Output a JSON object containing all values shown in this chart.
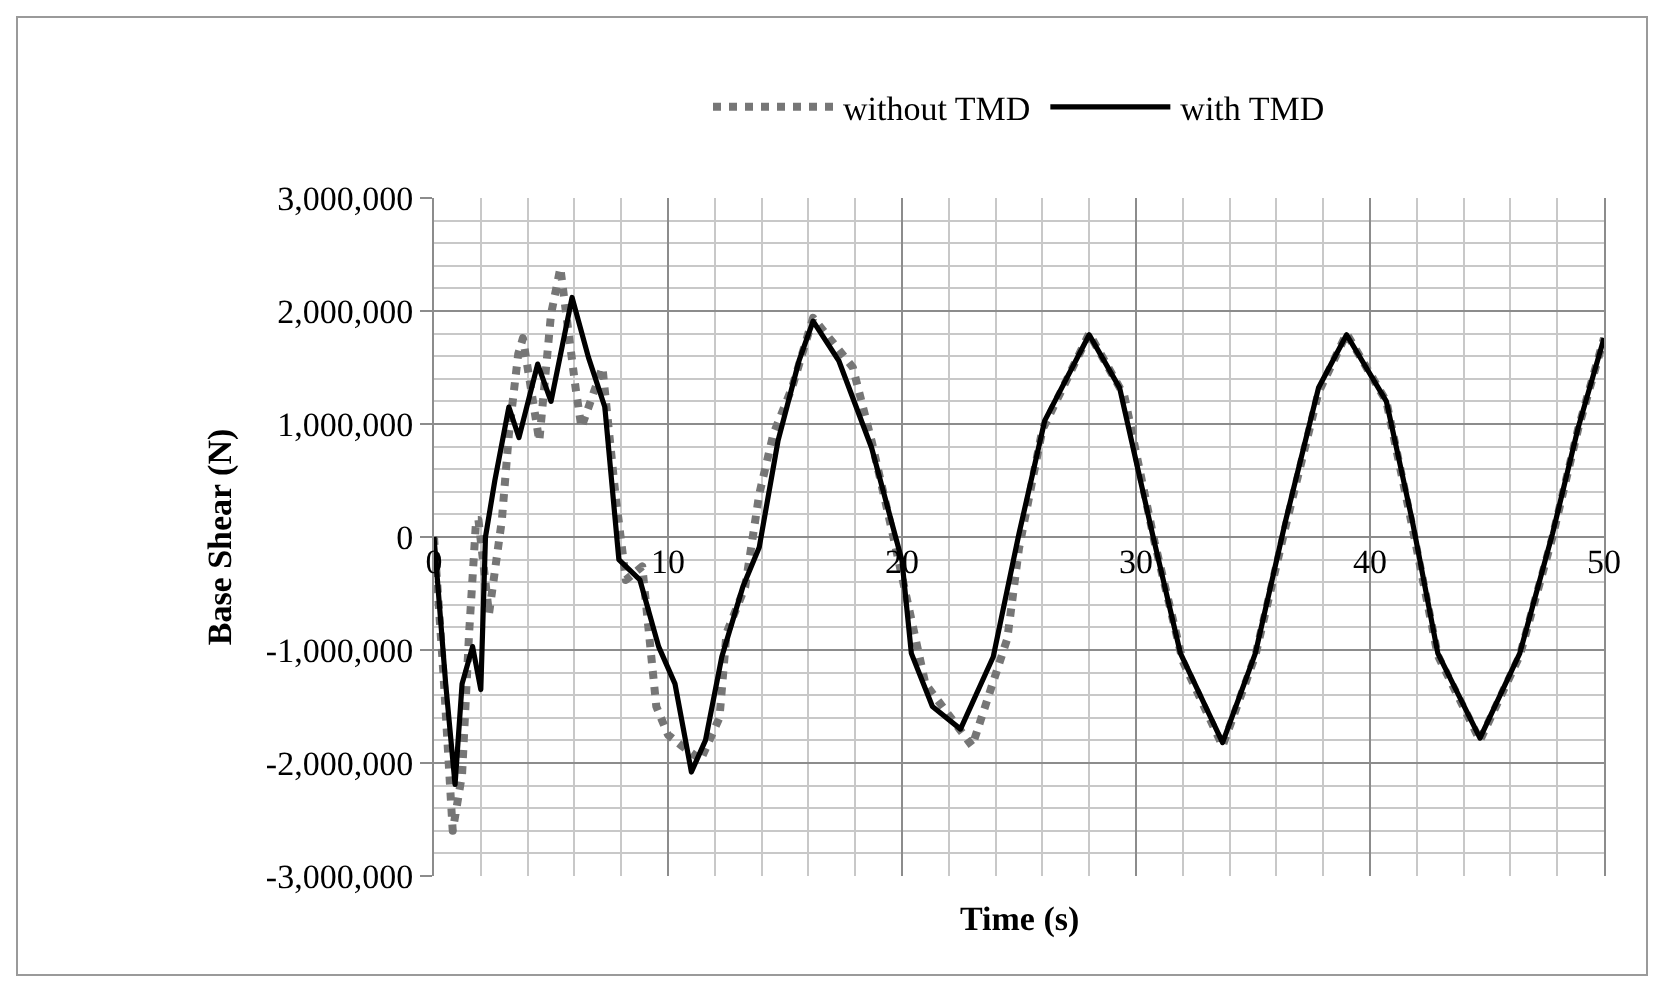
{
  "chart_data": {
    "type": "line",
    "xlabel": "Time (s)",
    "ylabel": "Base Shear (N)",
    "legend": "top",
    "grid": true,
    "xlim": [
      0,
      50
    ],
    "xticks": [
      0,
      10,
      20,
      30,
      40,
      50
    ],
    "ylim": [
      -3000000,
      3000000
    ],
    "yticks": [
      {
        "value": -3000000,
        "label": "-3,000,000"
      },
      {
        "value": -2000000,
        "label": "-2,000,000"
      },
      {
        "value": -1000000,
        "label": "-1,000,000"
      },
      {
        "value": 0,
        "label": "0"
      },
      {
        "value": 1000000,
        "label": "1,000,000"
      },
      {
        "value": 2000000,
        "label": "2,000,000"
      },
      {
        "value": 3000000,
        "label": "3,000,000"
      }
    ],
    "series": [
      {
        "name": "without TMD",
        "color": "#767676",
        "line_style": "dotted",
        "x": [
          0,
          0.4,
          0.8,
          1.2,
          1.5,
          1.8,
          1.9,
          2.35,
          2.9,
          3.2,
          3.6,
          3.8,
          4.5,
          5.0,
          5.4,
          6.05,
          6.3,
          7.2,
          7.75,
          8.2,
          8.9,
          9.5,
          10.0,
          10.6,
          11.4,
          12.2,
          12.5,
          13.3,
          13.9,
          14.5,
          15.3,
          16.2,
          17.9,
          18.7,
          19.6,
          21.0,
          23.0,
          24.5,
          25.0,
          26.0,
          28.0,
          29.5,
          30.8,
          32.0,
          33.7,
          35.1,
          36.4,
          37.8,
          39.0,
          40.7,
          41.8,
          42.9,
          44.7,
          46.4,
          47.8,
          48.9,
          50
        ],
        "values": [
          0,
          -1200000,
          -2600000,
          -2100000,
          -850000,
          150000,
          150000,
          -680000,
          150000,
          910000,
          1620000,
          1760000,
          850000,
          1970000,
          2380000,
          1320000,
          970000,
          1500000,
          380000,
          -380000,
          -260000,
          -1500000,
          -1750000,
          -1850000,
          -1970000,
          -1600000,
          -850000,
          -440000,
          380000,
          910000,
          1320000,
          1940000,
          1500000,
          850000,
          30000,
          -1300000,
          -1850000,
          -900000,
          -100000,
          950000,
          1800000,
          1250000,
          -50000,
          -1100000,
          -1850000,
          -1050000,
          100000,
          1280000,
          1800000,
          1200000,
          100000,
          -1050000,
          -1800000,
          -1050000,
          0,
          960000,
          1760000
        ]
      },
      {
        "name": "with TMD",
        "color": "#000000",
        "line_style": "solid",
        "x": [
          0,
          0.5,
          0.9,
          1.2,
          1.65,
          2.0,
          2.2,
          2.6,
          3.2,
          3.63,
          4.43,
          5.0,
          5.9,
          6.6,
          7.3,
          7.9,
          8.8,
          9.6,
          10.3,
          11.0,
          11.6,
          12.3,
          13.2,
          13.9,
          14.7,
          15.6,
          16.2,
          17.3,
          18.7,
          20.0,
          20.4,
          21.3,
          22.5,
          23.9,
          25.0,
          26.1,
          28.0,
          29.3,
          30.7,
          31.9,
          33.7,
          35.1,
          36.4,
          37.8,
          39.0,
          40.7,
          41.8,
          42.9,
          44.7,
          46.4,
          47.8,
          48.9,
          50
        ],
        "values": [
          0,
          -1300000,
          -2190000,
          -1300000,
          -970000,
          -1350000,
          0,
          500000,
          1150000,
          880000,
          1530000,
          1200000,
          2120000,
          1590000,
          1150000,
          -200000,
          -380000,
          -970000,
          -1300000,
          -2080000,
          -1800000,
          -1060000,
          -440000,
          -90000,
          850000,
          1560000,
          1910000,
          1560000,
          790000,
          -210000,
          -1030000,
          -1500000,
          -1700000,
          -1060000,
          30000,
          1030000,
          1790000,
          1320000,
          30000,
          -1030000,
          -1820000,
          -1030000,
          150000,
          1320000,
          1790000,
          1200000,
          150000,
          -1030000,
          -1780000,
          -1030000,
          30000,
          970000,
          1760000
        ]
      }
    ]
  }
}
